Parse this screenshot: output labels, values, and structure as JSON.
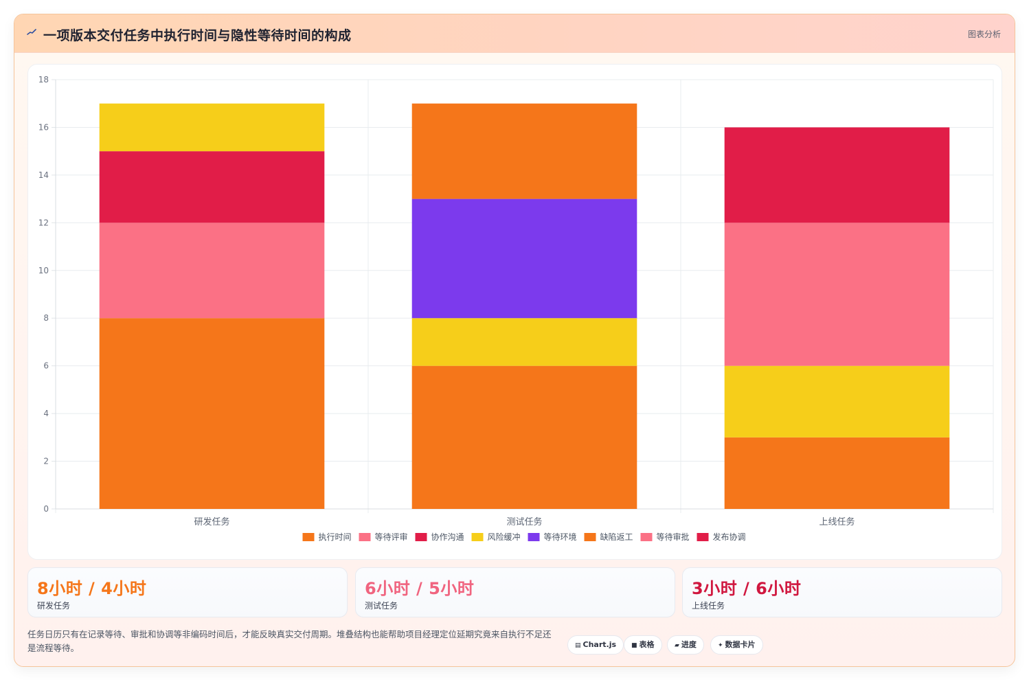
{
  "header": {
    "title": "一项版本交付任务中执行时间与隐性等待时间的构成",
    "tag": "图表分析"
  },
  "chart_data": {
    "type": "bar",
    "stacked": true,
    "categories": [
      "研发任务",
      "测试任务",
      "上线任务"
    ],
    "ylim": [
      0,
      18
    ],
    "yticks": [
      0,
      2,
      4,
      6,
      8,
      10,
      12,
      14,
      16,
      18
    ],
    "grid": true,
    "legend_position": "bottom",
    "series": [
      {
        "name": "执行时间",
        "color": "#f5761a",
        "values": [
          8,
          6,
          3
        ]
      },
      {
        "name": "等待评审",
        "color": "#fb7185",
        "values": [
          4,
          0,
          0
        ]
      },
      {
        "name": "协作沟通",
        "color": "#e11d48",
        "values": [
          3,
          0,
          0
        ]
      },
      {
        "name": "风险缓冲",
        "color": "#f6ce1a",
        "values": [
          2,
          2,
          3
        ]
      },
      {
        "name": "等待环境",
        "color": "#7c3aed",
        "values": [
          0,
          5,
          0
        ]
      },
      {
        "name": "缺陷返工",
        "color": "#f5761a",
        "values": [
          0,
          4,
          0
        ]
      },
      {
        "name": "等待审批",
        "color": "#fb7185",
        "values": [
          0,
          0,
          6
        ]
      },
      {
        "name": "发布协调",
        "color": "#e11d48",
        "values": [
          0,
          0,
          4
        ]
      }
    ]
  },
  "stats": [
    {
      "value": "8小时 / 4小时",
      "label": "研发任务",
      "color": "#f5761a"
    },
    {
      "value": "6小时 / 5小时",
      "label": "测试任务",
      "color": "#f0647f"
    },
    {
      "value": "3小时 / 6小时",
      "label": "上线任务",
      "color": "#d0173f"
    }
  ],
  "note": "任务日历只有在记录等待、审批和协调等非编码时间后，才能反映真实交付周期。堆叠结构也能帮助项目经理定位延期究竟来自执行不足还是流程等待。",
  "chips": [
    {
      "icon": "chart-icon",
      "glyph": "▤",
      "label": "Chart.js"
    },
    {
      "icon": "table-icon",
      "glyph": "■",
      "label": "表格"
    },
    {
      "icon": "progress-icon",
      "glyph": "▰",
      "label": "进度"
    },
    {
      "icon": "card-icon",
      "glyph": "✦",
      "label": "数据卡片"
    }
  ]
}
